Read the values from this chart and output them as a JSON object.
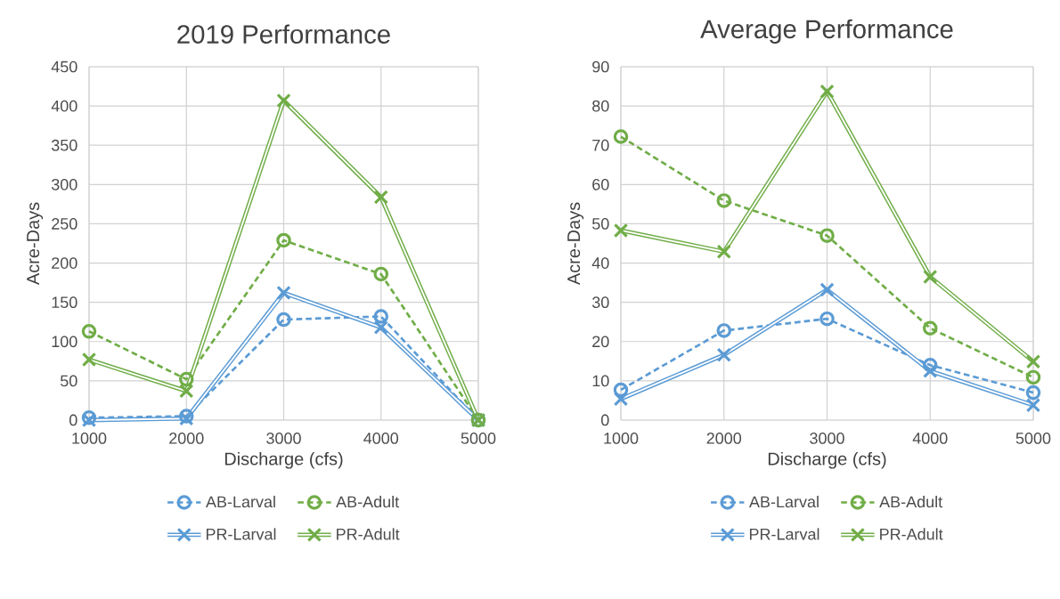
{
  "chart_data": [
    {
      "type": "line",
      "title": "2019 Performance",
      "xlabel": "Discharge (cfs)",
      "ylabel": "Acre-Days",
      "x": [
        1000,
        2000,
        3000,
        4000,
        5000
      ],
      "xlim": [
        1000,
        5000
      ],
      "xticks": [
        1000,
        2000,
        3000,
        4000,
        5000
      ],
      "ylim": [
        0,
        450
      ],
      "yticks": [
        0,
        50,
        100,
        150,
        200,
        250,
        300,
        350,
        400,
        450
      ],
      "grid": true,
      "legend": "bottom",
      "series": [
        {
          "name": "AB-Larval",
          "color": "#5b9bd5",
          "line_style": "dashed",
          "marker": "circle",
          "values": [
            3,
            5,
            128,
            132,
            0
          ]
        },
        {
          "name": "AB-Adult",
          "color": "#70ad47",
          "line_style": "dashed",
          "marker": "circle",
          "values": [
            113,
            52,
            229,
            186,
            0
          ]
        },
        {
          "name": "PR-Larval",
          "color": "#5b9bd5",
          "line_style": "solid",
          "marker": "cross",
          "values": [
            0,
            2,
            162,
            118,
            0
          ]
        },
        {
          "name": "PR-Adult",
          "color": "#70ad47",
          "line_style": "solid",
          "marker": "cross",
          "values": [
            77,
            37,
            407,
            284,
            0
          ]
        }
      ]
    },
    {
      "type": "line",
      "title": "Average Performance",
      "xlabel": "Discharge (cfs)",
      "ylabel": "Acre-Days",
      "x": [
        1000,
        2000,
        3000,
        4000,
        5000
      ],
      "xlim": [
        1000,
        5000
      ],
      "xticks": [
        1000,
        2000,
        3000,
        4000,
        5000
      ],
      "ylim": [
        0,
        90
      ],
      "yticks": [
        0,
        10,
        20,
        30,
        40,
        50,
        60,
        70,
        80,
        90
      ],
      "grid": true,
      "legend": "bottom",
      "series": [
        {
          "name": "AB-Larval",
          "color": "#5b9bd5",
          "line_style": "dashed",
          "marker": "circle",
          "values": [
            7.7,
            22.8,
            25.8,
            14,
            7
          ]
        },
        {
          "name": "AB-Adult",
          "color": "#70ad47",
          "line_style": "dashed",
          "marker": "circle",
          "values": [
            72.2,
            55.9,
            47,
            23.4,
            10.9
          ]
        },
        {
          "name": "PR-Larval",
          "color": "#5b9bd5",
          "line_style": "solid",
          "marker": "cross",
          "values": [
            5.4,
            16.6,
            33.2,
            12.5,
            3.8
          ]
        },
        {
          "name": "PR-Adult",
          "color": "#70ad47",
          "line_style": "solid",
          "marker": "cross",
          "values": [
            48.3,
            42.9,
            83.7,
            36.5,
            14.9
          ]
        }
      ]
    }
  ]
}
